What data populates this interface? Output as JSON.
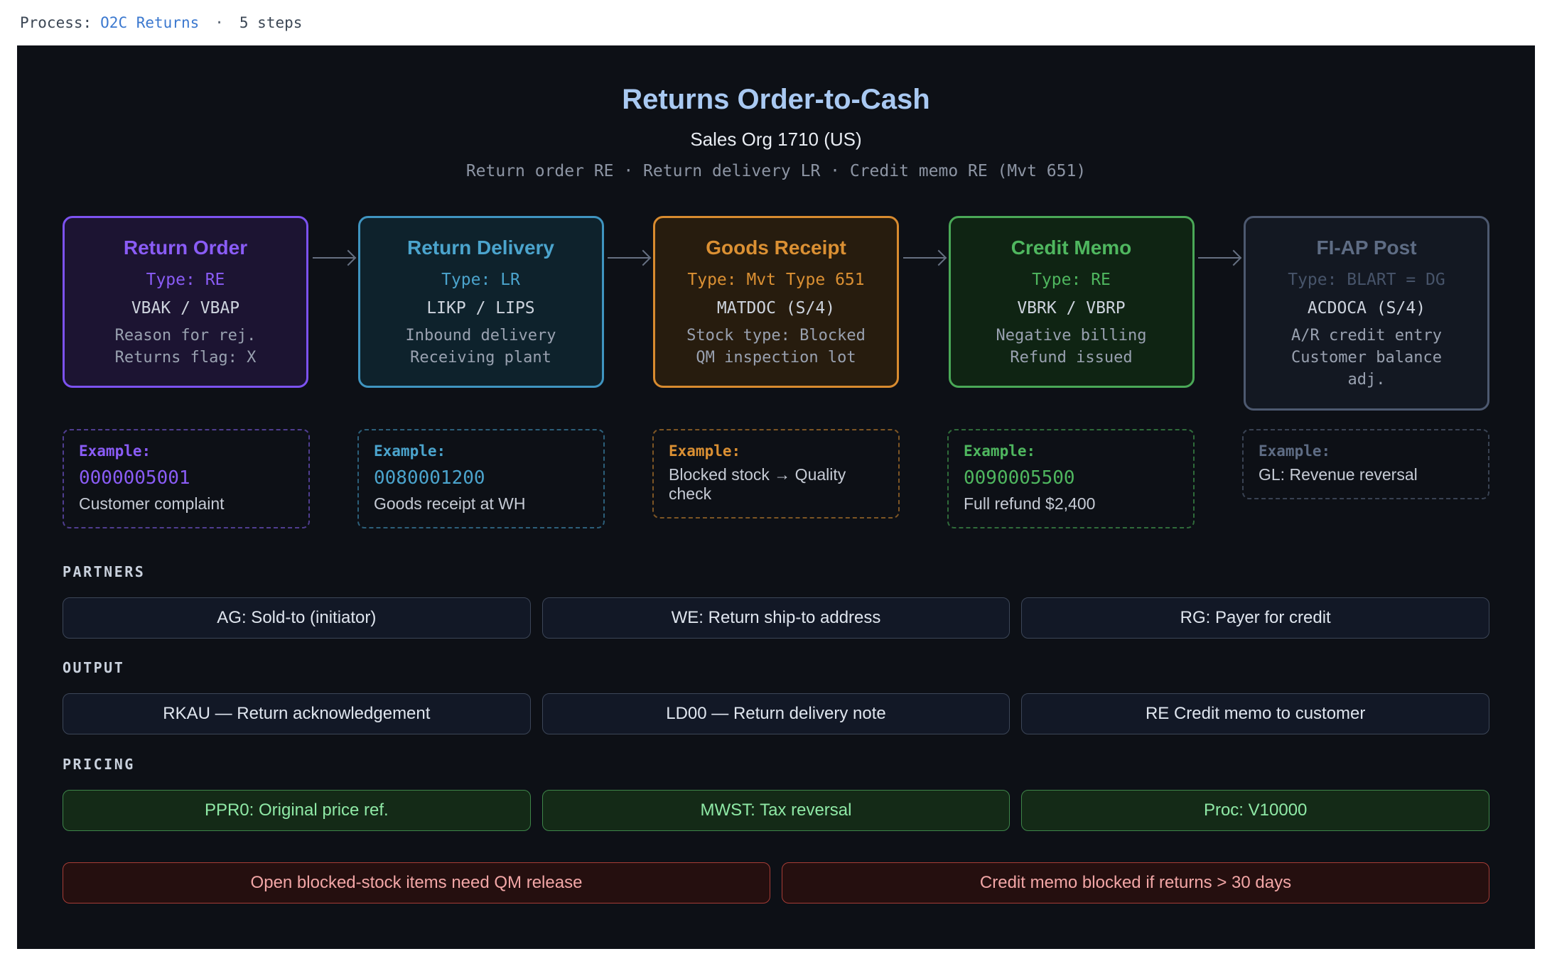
{
  "topbar": {
    "label": "Process:",
    "process_name": "O2C Returns",
    "separator": "·",
    "steps_count": "5 steps"
  },
  "header": {
    "title": "Returns Order-to-Cash",
    "subtitle": "Sales Org 1710 (US)",
    "doc_chain": "Return order RE · Return delivery LR · Credit memo RE (Mvt 651)"
  },
  "icons": {
    "flow_arrow": "arrow-right"
  },
  "colors": {
    "page_bg": "#ffffff",
    "panel_bg": "#0d1016",
    "topbar_link": "#3b78cf",
    "title_c": "#a9c9f2",
    "subtitle_c": "#e9edf3",
    "chain_c": "#8d95a4",
    "arrow_c": "#667082",
    "section_label": "#c9d1dd",
    "pill_bg": "#121826",
    "pill_border": "#3c4658",
    "pill_text": "#dfe5ee",
    "pricing_bg": "#142a17",
    "pricing_border": "#3e8549",
    "pricing_text": "#8fe9a6",
    "warning_bg": "#250f0f",
    "warning_border": "#a63c36",
    "warning_text": "#f2a6a6"
  },
  "steps": [
    {
      "title": "Return Order",
      "type_line": "Type: RE",
      "tables": "VBAK / VBAP",
      "desc": [
        "Reason for rej.",
        "Returns flag: X"
      ],
      "example": {
        "label": "Example:",
        "doc": "0000005001",
        "note": "Customer complaint"
      },
      "colors": {
        "border": "#7c52f0",
        "bg": "#1c1432",
        "title": "#8a5cf6",
        "type": "#8a5cf6",
        "ex_border": "#4f3d8f"
      }
    },
    {
      "title": "Return Delivery",
      "type_line": "Type: LR",
      "tables": "LIKP / LIPS",
      "desc": [
        "Inbound delivery",
        "Receiving plant"
      ],
      "example": {
        "label": "Example:",
        "doc": "0080001200",
        "note": "Goods receipt at WH"
      },
      "colors": {
        "border": "#3f94c0",
        "bg": "#0e222c",
        "title": "#4ba4cd",
        "type": "#4ba4cd",
        "ex_border": "#2c5f7a"
      }
    },
    {
      "title": "Goods Receipt",
      "type_line": "Type: Mvt Type 651",
      "tables": "MATDOC (S/4)",
      "desc": [
        "Stock type: Blocked",
        "QM inspection lot"
      ],
      "example": {
        "label": "Example:",
        "note": "Blocked stock → Quality check"
      },
      "colors": {
        "border": "#d88b2f",
        "bg": "#271c0e",
        "title": "#db9033",
        "type": "#db9033",
        "ex_border": "#7d5524"
      }
    },
    {
      "title": "Credit Memo",
      "type_line": "Type: RE",
      "tables": "VBRK / VBRP",
      "desc": [
        "Negative billing",
        "Refund issued"
      ],
      "example": {
        "label": "Example:",
        "doc": "0090005500",
        "note": "Full refund $2,400"
      },
      "colors": {
        "border": "#4aa857",
        "bg": "#0f2413",
        "title": "#4fb75f",
        "type": "#4fb75f",
        "ex_border": "#2f6b3a"
      }
    },
    {
      "title": "FI-AP Post",
      "type_line": "Type: BLART = DG",
      "tables": "ACDOCA (S/4)",
      "desc": [
        "A/R credit entry",
        "Customer balance",
        "adj."
      ],
      "example": {
        "label": "Example:",
        "note": "GL: Revenue reversal"
      },
      "colors": {
        "border": "#4d5970",
        "bg": "#131822",
        "title": "#5e6c84",
        "type": "#47546a",
        "ex_border": "#394252"
      }
    }
  ],
  "sections": {
    "partners": {
      "label": "PARTNERS",
      "items": [
        "AG: Sold-to (initiator)",
        "WE: Return ship-to address",
        "RG: Payer for credit"
      ]
    },
    "output": {
      "label": "OUTPUT",
      "items": [
        "RKAU — Return acknowledgement",
        "LD00 — Return delivery note",
        "RE Credit memo to customer"
      ]
    },
    "pricing": {
      "label": "PRICING",
      "items": [
        "PPR0: Original price ref.",
        "MWST: Tax reversal",
        "Proc: V10000"
      ]
    }
  },
  "warnings": [
    "Open blocked-stock items need QM release",
    "Credit memo blocked if returns > 30 days"
  ]
}
